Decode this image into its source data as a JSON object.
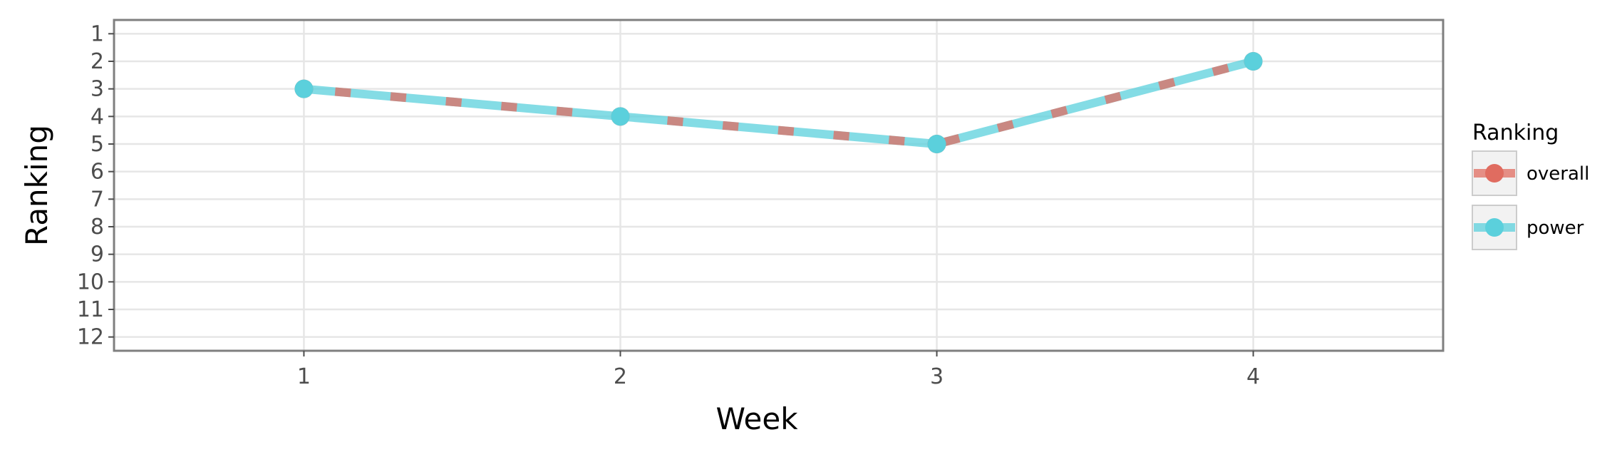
{
  "chart_data": {
    "type": "line",
    "x": [
      1,
      2,
      3,
      4
    ],
    "series": [
      {
        "name": "overall",
        "values": [
          3,
          4,
          5,
          2
        ],
        "color": "#e06c60",
        "style": "dashed"
      },
      {
        "name": "power",
        "values": [
          3,
          4,
          5,
          2
        ],
        "color": "#5bd0dc",
        "style": "solid"
      }
    ],
    "xlabel": "Week",
    "ylabel": "Ranking",
    "x_ticks": [
      "1",
      "2",
      "3",
      "4"
    ],
    "y_ticks": [
      "1",
      "2",
      "3",
      "4",
      "5",
      "6",
      "7",
      "8",
      "9",
      "10",
      "11",
      "12"
    ],
    "xlim": [
      0.4,
      4.6
    ],
    "ylim": [
      12.5,
      0.5
    ],
    "y_reversed": true,
    "grid": true,
    "legend": {
      "title": "Ranking",
      "placement": "right"
    }
  }
}
